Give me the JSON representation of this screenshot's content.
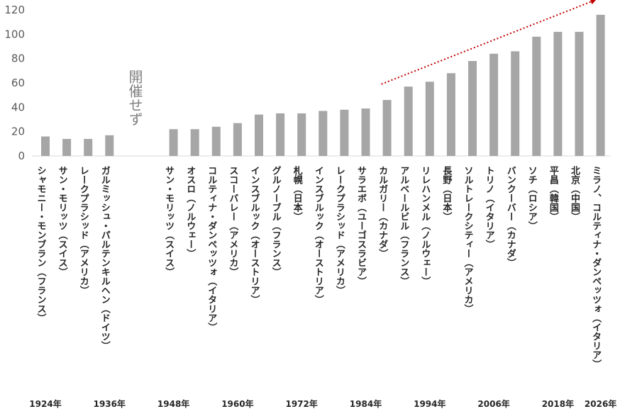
{
  "chart_data": {
    "type": "bar",
    "title": "",
    "xlabel": "",
    "ylabel": "",
    "ylim": [
      0,
      120
    ],
    "yticks": [
      0,
      20,
      40,
      60,
      80,
      100,
      120
    ],
    "grid": false,
    "bar_color": "#a6a6a6",
    "trend_color": "#c00000",
    "categories": [
      "シャモニー・モンブラン（フランス）",
      "サン・モリッツ（スイス）",
      "レークプラシッド（アメリカ）",
      "ガルミッシュ・パルテンキルヘン（ドイツ）",
      "",
      "",
      "サン・モリッツ（スイス）",
      "オスロ（ノルウェー）",
      "コルティナ・ダンペッツォ（イタリア）",
      "スコーバレー（アメリカ）",
      "インスブルック（オーストリア）",
      "グルノーブル（フランス）",
      "札幌（日本）",
      "インスブルック（オーストリア）",
      "レークプラシッド（アメリカ）",
      "サラエボ（ユーゴスラビア）",
      "カルガリー（カナダ）",
      "アルベールビル（フランス）",
      "リレハンメル（ノルウェー）",
      "長野（日本）",
      "ソルトレークシティー（アメリカ）",
      "トリノ（イタリア）",
      "バンクーバー（カナダ）",
      "ソチ（ロシア）",
      "平昌（韓国）",
      "北京（中国）",
      "ミラノ、コルティナ・ダンペッツォ（イタリア）"
    ],
    "values": [
      16,
      14,
      14,
      17,
      null,
      null,
      22,
      22,
      24,
      27,
      34,
      35,
      35,
      37,
      38,
      39,
      46,
      57,
      61,
      68,
      78,
      84,
      86,
      98,
      102,
      102,
      116
    ],
    "year_labels": [
      {
        "index": 0,
        "label": "1924年"
      },
      {
        "index": 3,
        "label": "1936年"
      },
      {
        "index": 6,
        "label": "1948年"
      },
      {
        "index": 9,
        "label": "1960年"
      },
      {
        "index": 12,
        "label": "1972年"
      },
      {
        "index": 15,
        "label": "1984年"
      },
      {
        "index": 18,
        "label": "1994年"
      },
      {
        "index": 21,
        "label": "2006年"
      },
      {
        "index": 24,
        "label": "2018年"
      },
      {
        "index": 26,
        "label": "2026年"
      }
    ],
    "annotation": "開催せず",
    "trend": {
      "from_index": 16,
      "from_value": 59,
      "to_index": 26,
      "to_value": 128
    }
  }
}
